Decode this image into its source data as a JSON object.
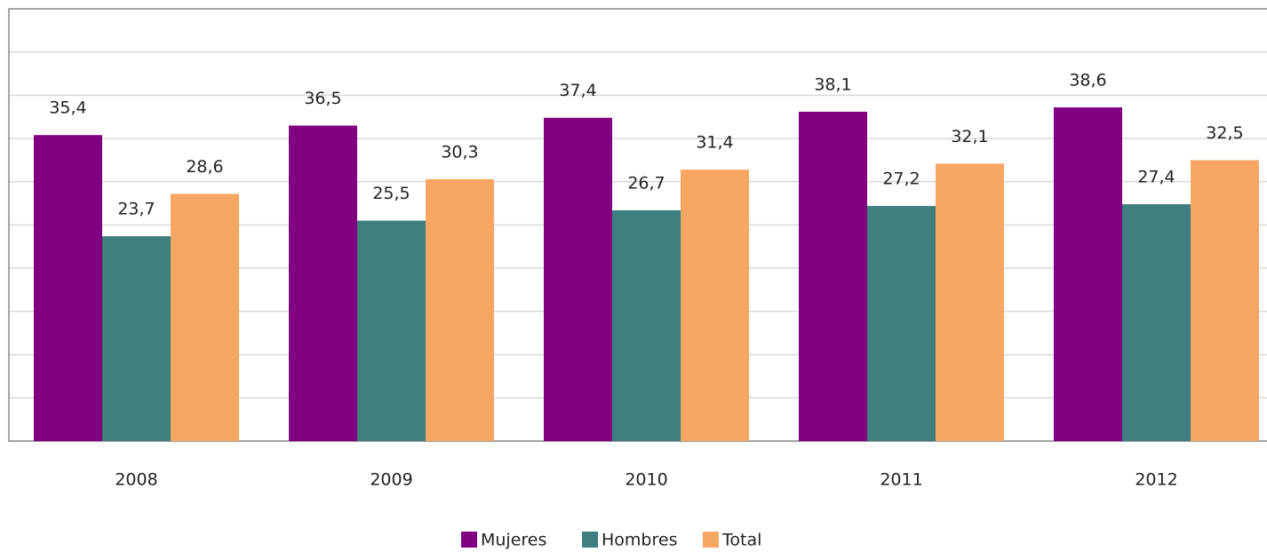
{
  "chart_data": {
    "type": "bar",
    "categories": [
      "2008",
      "2009",
      "2010",
      "2011",
      "2012"
    ],
    "series": [
      {
        "name": "Mujeres",
        "color": "#800080",
        "values": [
          35.4,
          36.5,
          37.4,
          38.1,
          38.6
        ],
        "value_labels": [
          "35,4",
          "36,5",
          "37,4",
          "38,1",
          "38,6"
        ]
      },
      {
        "name": "Hombres",
        "color": "#3f7f7f",
        "values": [
          23.7,
          25.5,
          26.7,
          27.2,
          27.4
        ],
        "value_labels": [
          "23,7",
          "25,5",
          "26,7",
          "27,2",
          "27,4"
        ]
      },
      {
        "name": "Total",
        "color": "#f7a664",
        "values": [
          28.6,
          30.3,
          31.4,
          32.1,
          32.5
        ],
        "value_labels": [
          "28,6",
          "30,3",
          "31,4",
          "32,1",
          "32,5"
        ]
      }
    ],
    "ylim": [
      0,
      50
    ],
    "yticks": [
      0,
      5,
      10,
      15,
      20,
      25,
      30,
      35,
      40,
      45,
      50
    ],
    "grid": true
  }
}
